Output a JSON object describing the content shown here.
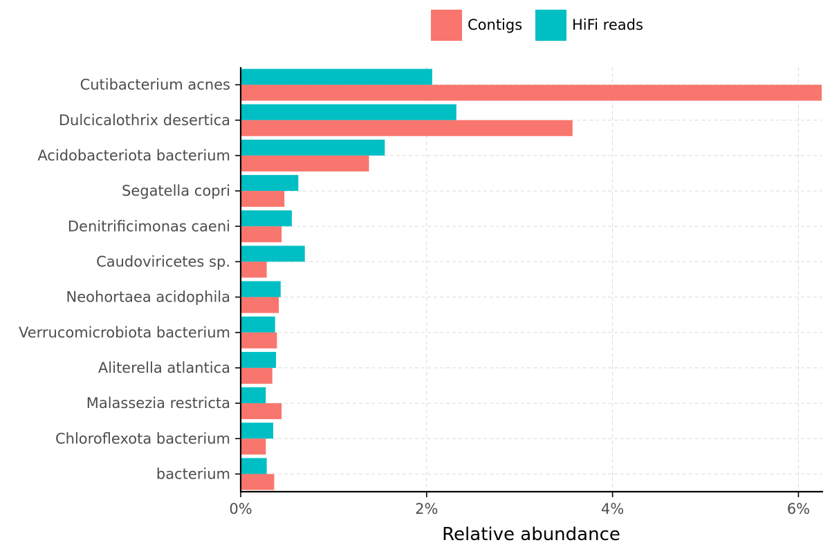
{
  "chart_data": {
    "type": "bar",
    "orientation": "horizontal",
    "title": "",
    "xlabel": "Relative abundance",
    "ylabel": "",
    "xlim": [
      0,
      6.25
    ],
    "x_ticks": [
      0,
      2,
      4,
      6
    ],
    "x_tick_labels": [
      "0%",
      "2%",
      "4%",
      "6%"
    ],
    "grid": true,
    "legend_position": "top",
    "categories": [
      "Cutibacterium acnes",
      "Dulcicalothrix desertica",
      "Acidobacteriota bacterium",
      "Segatella copri",
      "Denitrificimonas caeni",
      "Caudoviricetes sp.",
      "Neohortaea acidophila",
      "Verrucomicrobiota bacterium",
      "Aliterella atlantica",
      "Malassezia restricta",
      "Chloroflexota bacterium",
      "bacterium"
    ],
    "series": [
      {
        "name": "Contigs",
        "color": "#F8766D",
        "values": [
          6.25,
          3.57,
          1.38,
          0.47,
          0.44,
          0.28,
          0.41,
          0.39,
          0.34,
          0.44,
          0.27,
          0.36
        ]
      },
      {
        "name": "HiFi reads",
        "color": "#00BFC4",
        "values": [
          2.06,
          2.32,
          1.55,
          0.62,
          0.55,
          0.69,
          0.43,
          0.37,
          0.38,
          0.27,
          0.35,
          0.28
        ]
      }
    ]
  }
}
